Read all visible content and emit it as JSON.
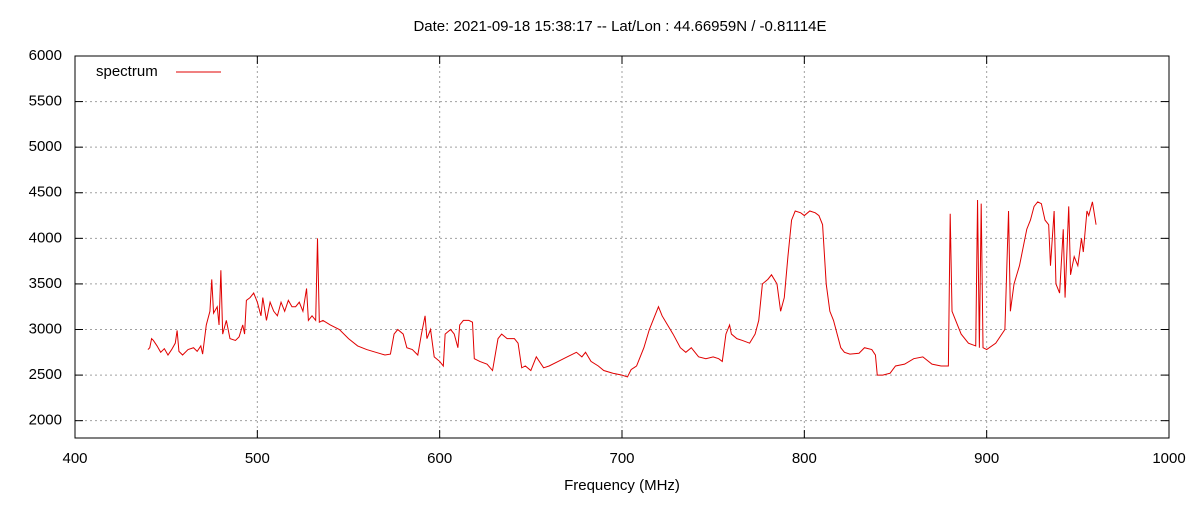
{
  "chart_data": {
    "type": "line",
    "title": "Date: 2021-09-18 15:38:17  --  Lat/Lon : 44.66959N / -0.81114E",
    "x_label": "Frequency (MHz)",
    "legend": "top-left",
    "grid": true,
    "xlim": [
      400,
      1000
    ],
    "xticks": [
      400,
      500,
      600,
      700,
      800,
      900,
      1000
    ],
    "ylim": [
      1810,
      6000
    ],
    "yticks": [
      2000,
      2500,
      3000,
      3500,
      4000,
      4500,
      5000,
      5500,
      6000
    ],
    "x": [
      440,
      441,
      442,
      443,
      445,
      447,
      449,
      451,
      453,
      455,
      456,
      457,
      459,
      462,
      465,
      467,
      469,
      470,
      472,
      474,
      475,
      476,
      478,
      479,
      480,
      481,
      483,
      485,
      488,
      490,
      492,
      493,
      494,
      496,
      498,
      500,
      502,
      503,
      505,
      507,
      509,
      511,
      513,
      515,
      517,
      519,
      521,
      523,
      525,
      527,
      528,
      530,
      532,
      533,
      534,
      536,
      540,
      545,
      550,
      555,
      560,
      565,
      570,
      573,
      575,
      577,
      580,
      582,
      585,
      588,
      590,
      592,
      593,
      595,
      597,
      600,
      602,
      603,
      606,
      608,
      610,
      611,
      613,
      616,
      618,
      619,
      622,
      626,
      629,
      632,
      634,
      637,
      641,
      643,
      645,
      647,
      650,
      653,
      657,
      660,
      665,
      670,
      675,
      678,
      680,
      683,
      687,
      690,
      695,
      700,
      703,
      705,
      708,
      712,
      715,
      718,
      720,
      722,
      725,
      728,
      732,
      735,
      738,
      742,
      746,
      750,
      753,
      755,
      757,
      759,
      760,
      763,
      766,
      770,
      773,
      775,
      777,
      780,
      782,
      785,
      787,
      789,
      791,
      793,
      795,
      798,
      800,
      803,
      806,
      808,
      810,
      812,
      814,
      816,
      818,
      820,
      822,
      825,
      830,
      833,
      837,
      839,
      840,
      843,
      847,
      850,
      855,
      860,
      865,
      870,
      875,
      879,
      880,
      881,
      883,
      886,
      890,
      894,
      895,
      896,
      897,
      898,
      900,
      905,
      910,
      912,
      913,
      915,
      918,
      920,
      922,
      924,
      926,
      928,
      930,
      932,
      934,
      935,
      937,
      938,
      940,
      942,
      943,
      945,
      946,
      948,
      950,
      952,
      953,
      955,
      956,
      958,
      960
    ],
    "series": [
      {
        "name": "spectrum",
        "color": "#e00000",
        "values": [
          2780,
          2800,
          2900,
          2880,
          2820,
          2750,
          2790,
          2720,
          2780,
          2850,
          2990,
          2760,
          2720,
          2780,
          2800,
          2760,
          2820,
          2730,
          3050,
          3200,
          3550,
          3180,
          3250,
          3050,
          3650,
          2950,
          3100,
          2900,
          2880,
          2920,
          3050,
          2950,
          3320,
          3350,
          3400,
          3300,
          3150,
          3350,
          3100,
          3300,
          3200,
          3150,
          3300,
          3200,
          3320,
          3250,
          3250,
          3300,
          3200,
          3450,
          3100,
          3150,
          3100,
          4000,
          3080,
          3100,
          3050,
          3000,
          2900,
          2820,
          2780,
          2750,
          2720,
          2730,
          2950,
          3000,
          2950,
          2800,
          2780,
          2720,
          2950,
          3150,
          2900,
          3000,
          2700,
          2650,
          2600,
          2950,
          3000,
          2950,
          2800,
          3050,
          3100,
          3100,
          3080,
          2680,
          2650,
          2620,
          2550,
          2900,
          2950,
          2900,
          2900,
          2850,
          2580,
          2600,
          2550,
          2700,
          2580,
          2600,
          2650,
          2700,
          2750,
          2700,
          2750,
          2650,
          2600,
          2550,
          2520,
          2500,
          2480,
          2560,
          2600,
          2800,
          3000,
          3150,
          3250,
          3150,
          3050,
          2950,
          2800,
          2750,
          2800,
          2700,
          2680,
          2700,
          2680,
          2650,
          2950,
          3050,
          2950,
          2900,
          2880,
          2850,
          2950,
          3100,
          3500,
          3550,
          3600,
          3500,
          3200,
          3350,
          3800,
          4200,
          4300,
          4280,
          4250,
          4300,
          4280,
          4250,
          4150,
          3500,
          3200,
          3100,
          2950,
          2800,
          2750,
          2730,
          2740,
          2800,
          2780,
          2720,
          2500,
          2500,
          2520,
          2600,
          2620,
          2680,
          2700,
          2620,
          2600,
          2600,
          4270,
          3200,
          3100,
          2950,
          2850,
          2820,
          4420,
          2800,
          4380,
          2800,
          2780,
          2850,
          3000,
          4300,
          3200,
          3500,
          3700,
          3900,
          4100,
          4200,
          4350,
          4400,
          4380,
          4200,
          4150,
          3700,
          4300,
          3500,
          3400,
          4100,
          3350,
          4350,
          3600,
          3800,
          3700,
          4000,
          3850,
          4300,
          4250,
          4400,
          4150
        ]
      }
    ]
  }
}
